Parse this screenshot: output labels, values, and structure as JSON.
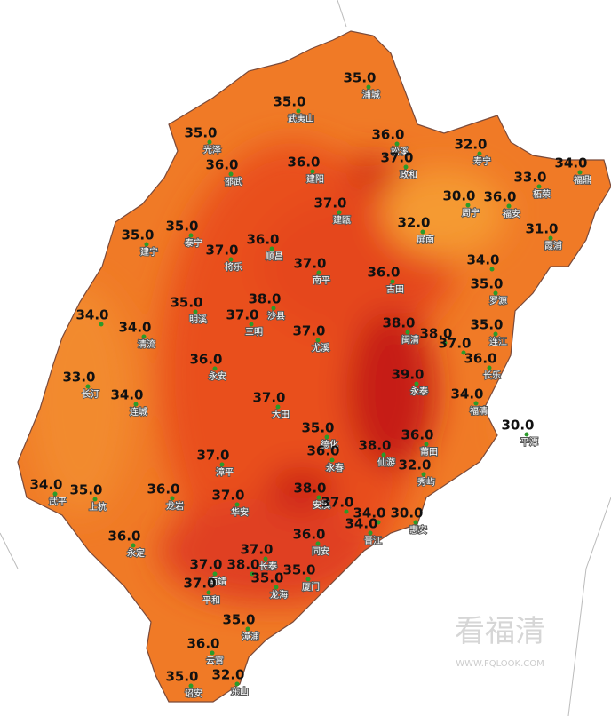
{
  "stations": [
    {
      "value": "35.0",
      "name": "浦城"
    },
    {
      "value": "35.0",
      "name": "武夷山"
    },
    {
      "value": "36.0",
      "name": "松溪"
    },
    {
      "value": "37.0",
      "name": "政和"
    },
    {
      "value": "32.0",
      "name": "寿宁"
    },
    {
      "value": "33.0",
      "name": "柘荣"
    },
    {
      "value": "34.0",
      "name": "福鼎"
    },
    {
      "value": "35.0",
      "name": "光泽"
    },
    {
      "value": "36.0",
      "name": "邵武"
    },
    {
      "value": "36.0",
      "name": "建阳"
    },
    {
      "value": "37.0",
      "name": "建瓯"
    },
    {
      "value": "30.0",
      "name": "周宁"
    },
    {
      "value": "36.0",
      "name": "福安"
    },
    {
      "value": "32.0",
      "name": "屏南"
    },
    {
      "value": "31.0",
      "name": "霞浦"
    },
    {
      "value": "35.0",
      "name": "泰宁"
    },
    {
      "value": "35.0",
      "name": "建宁"
    },
    {
      "value": "37.0",
      "name": "将乐"
    },
    {
      "value": "36.0",
      "name": "顺昌"
    },
    {
      "value": "37.0",
      "name": "南平"
    },
    {
      "value": "36.0",
      "name": "古田"
    },
    {
      "value": "34.0"
    },
    {
      "value": "35.0",
      "name": "罗源"
    },
    {
      "value": "35.0",
      "name": "连江"
    },
    {
      "value": "35.0",
      "name": "明溪"
    },
    {
      "value": "38.0",
      "name": "沙县"
    },
    {
      "value": "37.0",
      "name": "三明"
    },
    {
      "value": "34.0"
    },
    {
      "value": "34.0",
      "name": "清流"
    },
    {
      "value": "37.0",
      "name": "尤溪"
    },
    {
      "value": "38.0",
      "name": "闽清"
    },
    {
      "value": "38.0"
    },
    {
      "value": "37.0"
    },
    {
      "value": "36.0",
      "name": "长乐"
    },
    {
      "value": "39.0",
      "name": "永泰"
    },
    {
      "value": "36.0",
      "name": "永安"
    },
    {
      "value": "33.0",
      "name": "长汀"
    },
    {
      "value": "34.0",
      "name": "连城"
    },
    {
      "value": "37.0",
      "name": "大田"
    },
    {
      "value": "34.0",
      "name": "福清"
    },
    {
      "value": "30.0",
      "name": "平潭"
    },
    {
      "value": "35.0",
      "name": "德化"
    },
    {
      "value": "36.0",
      "name": "永春"
    },
    {
      "value": "38.0",
      "name": "仙游"
    },
    {
      "value": "36.0",
      "name": "莆田"
    },
    {
      "value": "32.0",
      "name": "秀屿"
    },
    {
      "value": "37.0",
      "name": "漳平"
    },
    {
      "value": "34.0",
      "name": "武平"
    },
    {
      "value": "35.0",
      "name": "上杭"
    },
    {
      "value": "36.0",
      "name": "龙岩"
    },
    {
      "value": "37.0",
      "name": "华安"
    },
    {
      "value": "38.0",
      "name": "安溪"
    },
    {
      "value": "37.0"
    },
    {
      "value": "34.0"
    },
    {
      "value": "30.0",
      "name": "惠安"
    },
    {
      "value": "34.0",
      "name": "晋江"
    },
    {
      "value": "36.0",
      "name": "永定"
    },
    {
      "value": "36.0",
      "name": "同安"
    },
    {
      "value": "37.0",
      "name": "长泰"
    },
    {
      "value": "38.0"
    },
    {
      "value": "37.0",
      "name": "南靖"
    },
    {
      "value": "35.0",
      "name": "厦门"
    },
    {
      "value": "35.0",
      "name": "龙海"
    },
    {
      "value": "37.0",
      "name": "平和"
    },
    {
      "value": "35.0",
      "name": "漳浦"
    },
    {
      "value": "36.0",
      "name": "云霄"
    },
    {
      "value": "35.0",
      "name": "诏安"
    },
    {
      "value": "32.0",
      "name": "东山"
    }
  ],
  "watermark": {
    "title": "看福清",
    "url": "WWW.FQLOOK.COM"
  }
}
